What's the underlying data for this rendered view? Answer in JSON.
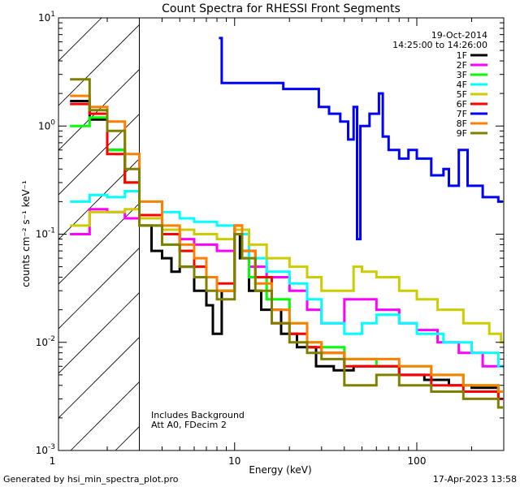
{
  "chart_data": {
    "type": "line",
    "title": "Count Spectra for RHESSI Front Segments",
    "xlabel": "Energy (keV)",
    "ylabel": "counts cm⁻² s⁻¹ keV⁻¹",
    "xscale": "log",
    "yscale": "log",
    "xlim": [
      1.08,
      300
    ],
    "ylim": [
      0.001,
      10
    ],
    "x_ticks": [
      {
        "value": 1,
        "label": "1"
      },
      {
        "value": 10,
        "label": "10"
      },
      {
        "value": 100,
        "label": "100"
      }
    ],
    "y_ticks": [
      {
        "value": 0.001,
        "base": "10",
        "exp": "-3"
      },
      {
        "value": 0.01,
        "base": "10",
        "exp": "-2"
      },
      {
        "value": 0.1,
        "base": "10",
        "exp": "-1"
      },
      {
        "value": 1,
        "base": "10",
        "exp": "0"
      },
      {
        "value": 10,
        "base": "10",
        "exp": "1"
      }
    ],
    "date": "19-Oct-2014",
    "time_range": "14:25:00 to 14:26:00",
    "excluded_region_below_keV": 3,
    "notes": [
      "Includes Background",
      "Att A0, FDecim 2"
    ],
    "series": [
      {
        "name": "1F",
        "color": "#000000",
        "points": [
          [
            1.25,
            1.7
          ],
          [
            1.6,
            1.15
          ],
          [
            2.0,
            0.6
          ],
          [
            2.5,
            0.3
          ],
          [
            3.0,
            0.12
          ],
          [
            3.5,
            0.07
          ],
          [
            4.0,
            0.06
          ],
          [
            4.5,
            0.045
          ],
          [
            5.0,
            0.05
          ],
          [
            6.0,
            0.03
          ],
          [
            7.0,
            0.022
          ],
          [
            7.6,
            0.012
          ],
          [
            8.5,
            0.03
          ],
          [
            10.0,
            0.1
          ],
          [
            10.7,
            0.06
          ],
          [
            12.0,
            0.03
          ],
          [
            14.0,
            0.02
          ],
          [
            18.0,
            0.012
          ],
          [
            22.0,
            0.009
          ],
          [
            28.0,
            0.006
          ],
          [
            35.0,
            0.0055
          ],
          [
            45.0,
            0.006
          ],
          [
            60.0,
            0.006
          ],
          [
            80.0,
            0.005
          ],
          [
            110.0,
            0.0045
          ],
          [
            150.0,
            0.004
          ],
          [
            200.0,
            0.0038
          ],
          [
            280.0,
            0.0035
          ]
        ]
      },
      {
        "name": "2F",
        "color": "#ff00ff",
        "points": [
          [
            1.25,
            0.1
          ],
          [
            1.6,
            0.17
          ],
          [
            2.0,
            0.16
          ],
          [
            2.5,
            0.14
          ],
          [
            3.0,
            0.12
          ],
          [
            4.0,
            0.1
          ],
          [
            5.0,
            0.09
          ],
          [
            6.0,
            0.08
          ],
          [
            8.0,
            0.07
          ],
          [
            10.0,
            0.1
          ],
          [
            12.0,
            0.05
          ],
          [
            15.0,
            0.04
          ],
          [
            20.0,
            0.03
          ],
          [
            25.0,
            0.02
          ],
          [
            30.0,
            0.015
          ],
          [
            40.0,
            0.025
          ],
          [
            50.0,
            0.025
          ],
          [
            60.0,
            0.02
          ],
          [
            80.0,
            0.015
          ],
          [
            100.0,
            0.013
          ],
          [
            130.0,
            0.01
          ],
          [
            170.0,
            0.008
          ],
          [
            230.0,
            0.006
          ],
          [
            290.0,
            0.006
          ]
        ]
      },
      {
        "name": "3F",
        "color": "#00ff00",
        "points": [
          [
            1.25,
            1.0
          ],
          [
            1.6,
            1.2
          ],
          [
            2.0,
            0.6
          ],
          [
            2.5,
            0.3
          ],
          [
            3.0,
            0.12
          ],
          [
            4.0,
            0.08
          ],
          [
            5.0,
            0.07
          ],
          [
            6.0,
            0.05
          ],
          [
            7.0,
            0.04
          ],
          [
            8.0,
            0.03
          ],
          [
            10.0,
            0.1
          ],
          [
            12.0,
            0.04
          ],
          [
            15.0,
            0.025
          ],
          [
            20.0,
            0.015
          ],
          [
            25.0,
            0.01
          ],
          [
            30.0,
            0.009
          ],
          [
            40.0,
            0.007
          ],
          [
            60.0,
            0.006
          ],
          [
            80.0,
            0.006
          ],
          [
            120.0,
            0.005
          ],
          [
            180.0,
            0.004
          ],
          [
            280.0,
            0.003
          ]
        ]
      },
      {
        "name": "4F",
        "color": "#00ffff",
        "points": [
          [
            1.25,
            0.2
          ],
          [
            1.6,
            0.23
          ],
          [
            2.0,
            0.22
          ],
          [
            2.5,
            0.25
          ],
          [
            3.0,
            0.2
          ],
          [
            4.0,
            0.16
          ],
          [
            5.0,
            0.14
          ],
          [
            6.0,
            0.13
          ],
          [
            8.0,
            0.12
          ],
          [
            10.0,
            0.1
          ],
          [
            12.0,
            0.06
          ],
          [
            15.0,
            0.045
          ],
          [
            20.0,
            0.035
          ],
          [
            25.0,
            0.025
          ],
          [
            30.0,
            0.015
          ],
          [
            40.0,
            0.012
          ],
          [
            50.0,
            0.015
          ],
          [
            60.0,
            0.018
          ],
          [
            80.0,
            0.015
          ],
          [
            100.0,
            0.012
          ],
          [
            140.0,
            0.01
          ],
          [
            200.0,
            0.008
          ],
          [
            280.0,
            0.006
          ]
        ]
      },
      {
        "name": "5F",
        "color": "#cccc00",
        "points": [
          [
            1.25,
            0.12
          ],
          [
            1.6,
            0.16
          ],
          [
            2.0,
            0.16
          ],
          [
            2.5,
            0.17
          ],
          [
            3.0,
            0.14
          ],
          [
            4.0,
            0.11
          ],
          [
            5.0,
            0.11
          ],
          [
            6.0,
            0.1
          ],
          [
            8.0,
            0.09
          ],
          [
            10.0,
            0.11
          ],
          [
            12.0,
            0.08
          ],
          [
            15.0,
            0.06
          ],
          [
            20.0,
            0.05
          ],
          [
            25.0,
            0.04
          ],
          [
            30.0,
            0.03
          ],
          [
            35.0,
            0.03
          ],
          [
            45.0,
            0.05
          ],
          [
            50.0,
            0.045
          ],
          [
            60.0,
            0.04
          ],
          [
            80.0,
            0.03
          ],
          [
            100.0,
            0.025
          ],
          [
            130.0,
            0.02
          ],
          [
            180.0,
            0.015
          ],
          [
            250.0,
            0.012
          ],
          [
            290.0,
            0.01
          ]
        ]
      },
      {
        "name": "6F",
        "color": "#ff0000",
        "points": [
          [
            1.25,
            1.6
          ],
          [
            1.6,
            1.3
          ],
          [
            2.0,
            0.55
          ],
          [
            2.5,
            0.3
          ],
          [
            3.0,
            0.15
          ],
          [
            4.0,
            0.1
          ],
          [
            5.0,
            0.07
          ],
          [
            6.0,
            0.05
          ],
          [
            7.0,
            0.04
          ],
          [
            8.0,
            0.035
          ],
          [
            10.0,
            0.12
          ],
          [
            11.0,
            0.07
          ],
          [
            13.0,
            0.04
          ],
          [
            16.0,
            0.015
          ],
          [
            20.0,
            0.012
          ],
          [
            25.0,
            0.009
          ],
          [
            30.0,
            0.008
          ],
          [
            40.0,
            0.006
          ],
          [
            60.0,
            0.006
          ],
          [
            80.0,
            0.005
          ],
          [
            120.0,
            0.004
          ],
          [
            180.0,
            0.0035
          ],
          [
            280.0,
            0.003
          ]
        ]
      },
      {
        "name": "7F",
        "color": "#0000ff",
        "points": [
          [
            8.2,
            6.5
          ],
          [
            8.5,
            2.5
          ],
          [
            18.0,
            2.5
          ],
          [
            18.5,
            2.2
          ],
          [
            20.0,
            2.2
          ],
          [
            29.0,
            1.5
          ],
          [
            33.0,
            1.3
          ],
          [
            38.0,
            1.1
          ],
          [
            42.0,
            0.75
          ],
          [
            45.0,
            1.5
          ],
          [
            47.0,
            0.09
          ],
          [
            49.0,
            1.0
          ],
          [
            55.0,
            1.3
          ],
          [
            62.0,
            2.0
          ],
          [
            65.0,
            0.8
          ],
          [
            70.0,
            0.6
          ],
          [
            80.0,
            0.5
          ],
          [
            90.0,
            0.6
          ],
          [
            100.0,
            0.5
          ],
          [
            120.0,
            0.35
          ],
          [
            140.0,
            0.4
          ],
          [
            150.0,
            0.28
          ],
          [
            170.0,
            0.6
          ],
          [
            190.0,
            0.28
          ],
          [
            230.0,
            0.22
          ],
          [
            280.0,
            0.2
          ]
        ]
      },
      {
        "name": "8F",
        "color": "#ff8000",
        "points": [
          [
            1.25,
            1.9
          ],
          [
            1.6,
            1.5
          ],
          [
            2.0,
            1.1
          ],
          [
            2.5,
            0.55
          ],
          [
            3.0,
            0.2
          ],
          [
            4.0,
            0.12
          ],
          [
            5.0,
            0.08
          ],
          [
            6.0,
            0.06
          ],
          [
            7.0,
            0.04
          ],
          [
            8.0,
            0.03
          ],
          [
            10.0,
            0.12
          ],
          [
            11.0,
            0.07
          ],
          [
            13.0,
            0.035
          ],
          [
            16.0,
            0.02
          ],
          [
            20.0,
            0.015
          ],
          [
            25.0,
            0.01
          ],
          [
            30.0,
            0.008
          ],
          [
            40.0,
            0.007
          ],
          [
            60.0,
            0.007
          ],
          [
            80.0,
            0.006
          ],
          [
            120.0,
            0.005
          ],
          [
            180.0,
            0.004
          ],
          [
            280.0,
            0.0035
          ]
        ]
      },
      {
        "name": "9F",
        "color": "#808000",
        "points": [
          [
            1.25,
            2.7
          ],
          [
            1.6,
            1.4
          ],
          [
            2.0,
            0.9
          ],
          [
            2.5,
            0.4
          ],
          [
            3.0,
            0.12
          ],
          [
            4.0,
            0.08
          ],
          [
            5.0,
            0.05
          ],
          [
            6.0,
            0.04
          ],
          [
            7.0,
            0.03
          ],
          [
            8.0,
            0.025
          ],
          [
            10.0,
            0.1
          ],
          [
            11.0,
            0.06
          ],
          [
            13.0,
            0.03
          ],
          [
            16.0,
            0.015
          ],
          [
            20.0,
            0.01
          ],
          [
            25.0,
            0.008
          ],
          [
            30.0,
            0.007
          ],
          [
            40.0,
            0.004
          ],
          [
            60.0,
            0.005
          ],
          [
            80.0,
            0.004
          ],
          [
            120.0,
            0.0035
          ],
          [
            180.0,
            0.003
          ],
          [
            280.0,
            0.0025
          ]
        ]
      }
    ]
  },
  "footer": {
    "generated_by": "Generated by hsi_min_spectra_plot.pro",
    "timestamp": "17-Apr-2023 13:58"
  }
}
